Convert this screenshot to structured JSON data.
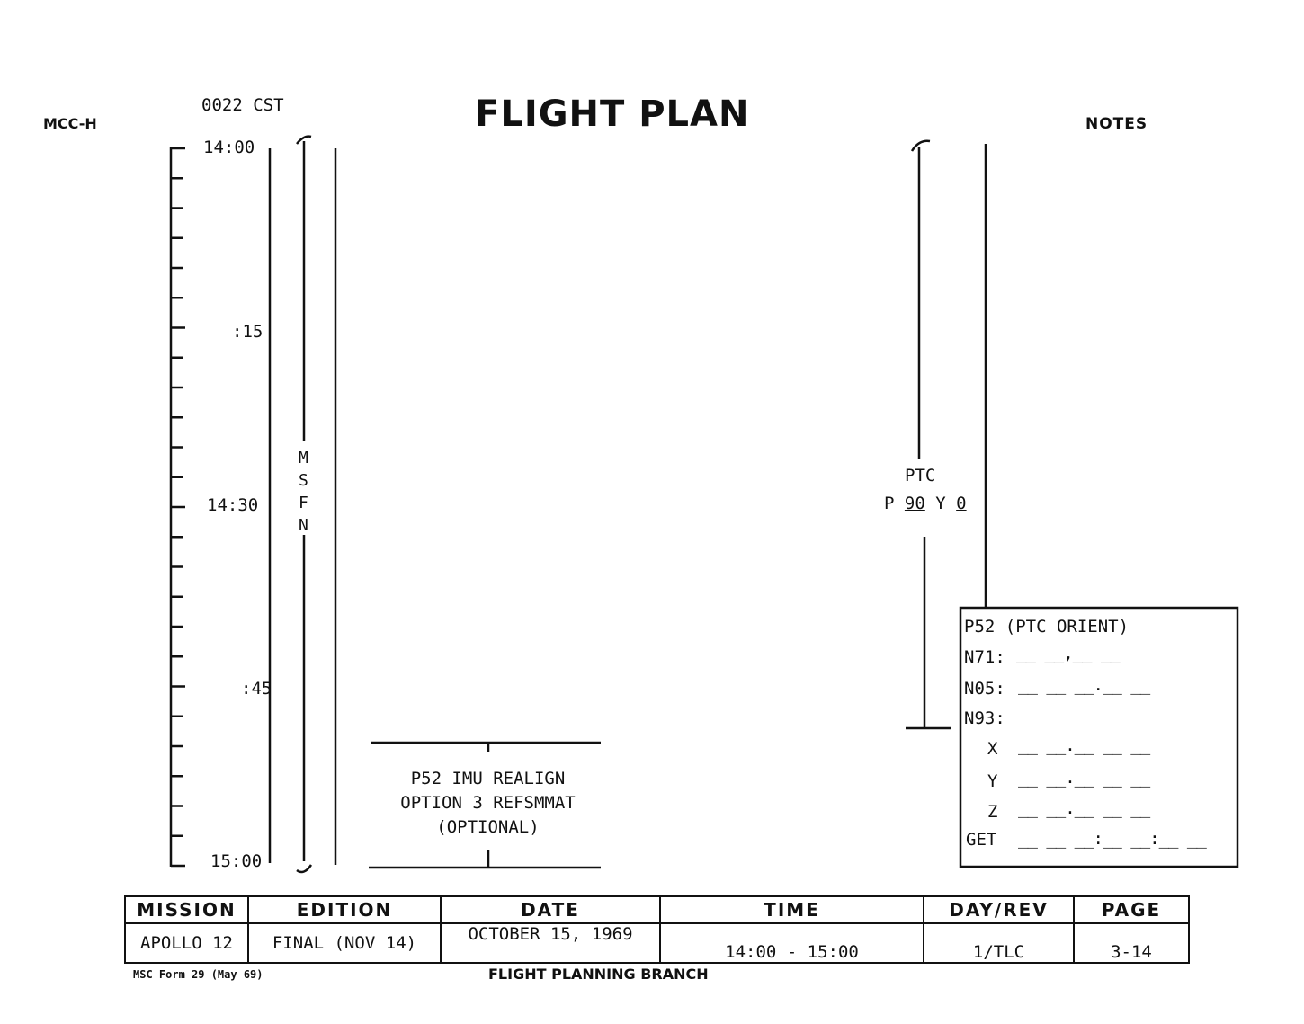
{
  "header": {
    "org": "MCC-H",
    "time_ref": "0022 CST",
    "title": "FLIGHT PLAN",
    "notes_label": "NOTES"
  },
  "timeline": {
    "labels": [
      "14:00",
      ":15",
      "14:30",
      ":45",
      "15:00"
    ]
  },
  "msfn": {
    "letters": [
      "M",
      "S",
      "F",
      "N"
    ]
  },
  "ptc": {
    "label": "PTC",
    "p_prefix": "P",
    "pitch": "90",
    "y_prefix": "Y",
    "yaw": "0"
  },
  "activity": {
    "lines": [
      "P52 IMU REALIGN",
      "OPTION 3 REFSMMAT",
      "(OPTIONAL)"
    ]
  },
  "notes_box": {
    "title": "P52 (PTC ORIENT)",
    "rows": [
      {
        "label": "N71:",
        "blank": "__ __,__ __"
      },
      {
        "label": "N05:",
        "blank": "__ __ __.__ __"
      },
      {
        "label": "N93:",
        "blank": ""
      },
      {
        "label": "X",
        "blank": "__ __.__ __ __"
      },
      {
        "label": "Y",
        "blank": "__ __.__ __ __"
      },
      {
        "label": "Z",
        "blank": "__ __.__ __ __"
      },
      {
        "label": "GET",
        "blank": "__ __ __:__ __:__ __"
      }
    ]
  },
  "footer_table": {
    "headers": [
      "MISSION",
      "EDITION",
      "DATE",
      "TIME",
      "DAY/REV",
      "PAGE"
    ],
    "values": [
      "APOLLO 12",
      "FINAL (NOV 14)",
      "OCTOBER 15, 1969",
      "14:00 - 15:00",
      "1/TLC",
      "3-14"
    ]
  },
  "footer": {
    "form": "MSC Form 29 (May 69)",
    "branch": "FLIGHT PLANNING BRANCH"
  }
}
